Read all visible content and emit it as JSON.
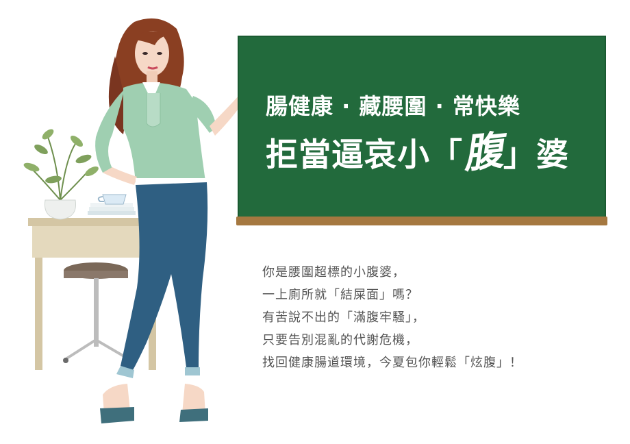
{
  "headline": {
    "line1": "腸健康 · 藏腰圍 · 常快樂",
    "line2_prefix": "拒當逼哀小「",
    "line2_emphasis": "腹",
    "line2_suffix": "」婆"
  },
  "body_text": [
    "你是腰圍超標的小腹婆，",
    "一上廁所就「結屎面」嗎？",
    "有苦說不出的「滿腹牢騷」，",
    "只要告別混亂的代謝危機，",
    "找回健康腸道環境，今夏包你輕鬆「炫腹」！"
  ],
  "colors": {
    "chalkboard": "#226a3c",
    "ledge": "#a57840",
    "shirt": "#9fcfb1",
    "jeans": "#2f5f82",
    "hair": "#8a3f22",
    "text": "#555555"
  }
}
